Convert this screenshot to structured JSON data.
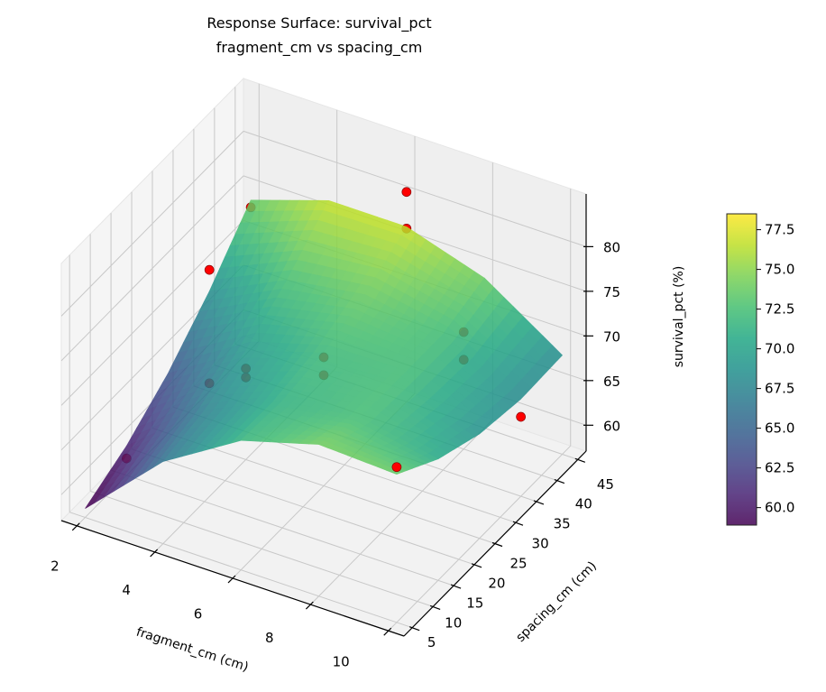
{
  "chart_data": {
    "type": "surface",
    "title": "Response Surface: survival_pct",
    "subtitle": "fragment_cm vs spacing_cm",
    "xlabel": "fragment_cm (cm)",
    "ylabel": "spacing_cm (cm)",
    "zlabel": "survival_pct (%)",
    "xlim": [
      1.6,
      10.4
    ],
    "ylim": [
      3,
      47
    ],
    "zlim": [
      57.1,
      85.9
    ],
    "xticks": [
      2,
      4,
      6,
      8,
      10
    ],
    "yticks": [
      5,
      10,
      15,
      20,
      25,
      30,
      35,
      40,
      45
    ],
    "zticks": [
      60,
      65,
      70,
      75,
      80
    ],
    "grid": true,
    "colormap": "viridis",
    "surface_alpha": 0.85,
    "surface": {
      "x": [
        2,
        4,
        6,
        8,
        10
      ],
      "y": [
        5,
        15,
        25,
        35,
        45
      ],
      "z": [
        [
          58.1,
          60.4,
          63.8,
          68.3,
          73.8
        ],
        [
          66.3,
          67.3,
          69.3,
          72.5,
          76.7
        ],
        [
          71.6,
          71.3,
          72.0,
          73.8,
          76.7
        ],
        [
          74.1,
          72.4,
          72.3,
          72.3,
          73.9
        ],
        [
          73.7,
          70.7,
          68.8,
          68.0,
          68.2
        ]
      ]
    },
    "observed_points": {
      "color": "#ff0000",
      "points": [
        {
          "x": 2,
          "y": 15,
          "z": 59.0
        },
        {
          "x": 2,
          "y": 35,
          "z": 58.0
        },
        {
          "x": 2,
          "y": 35,
          "z": 70.7
        },
        {
          "x": 2,
          "y": 45,
          "z": 73.0
        },
        {
          "x": 6,
          "y": 45,
          "z": 80.6
        },
        {
          "x": 6,
          "y": 45,
          "z": 76.5
        },
        {
          "x": 6,
          "y": 25,
          "z": 71.5
        },
        {
          "x": 6,
          "y": 25,
          "z": 69.5
        },
        {
          "x": 4,
          "y": 25,
          "z": 67.3
        },
        {
          "x": 4,
          "y": 25,
          "z": 66.3
        },
        {
          "x": 8,
          "y": 40,
          "z": 70.2
        },
        {
          "x": 8,
          "y": 40,
          "z": 67.1
        },
        {
          "x": 10,
          "y": 35,
          "z": 66.0
        },
        {
          "x": 10,
          "y": 5,
          "z": 74.5
        }
      ]
    },
    "colorbar": {
      "clim": [
        58.9,
        78.5
      ],
      "ticks": [
        "60.0",
        "62.5",
        "65.0",
        "67.5",
        "70.0",
        "72.5",
        "75.0",
        "77.5"
      ]
    }
  }
}
